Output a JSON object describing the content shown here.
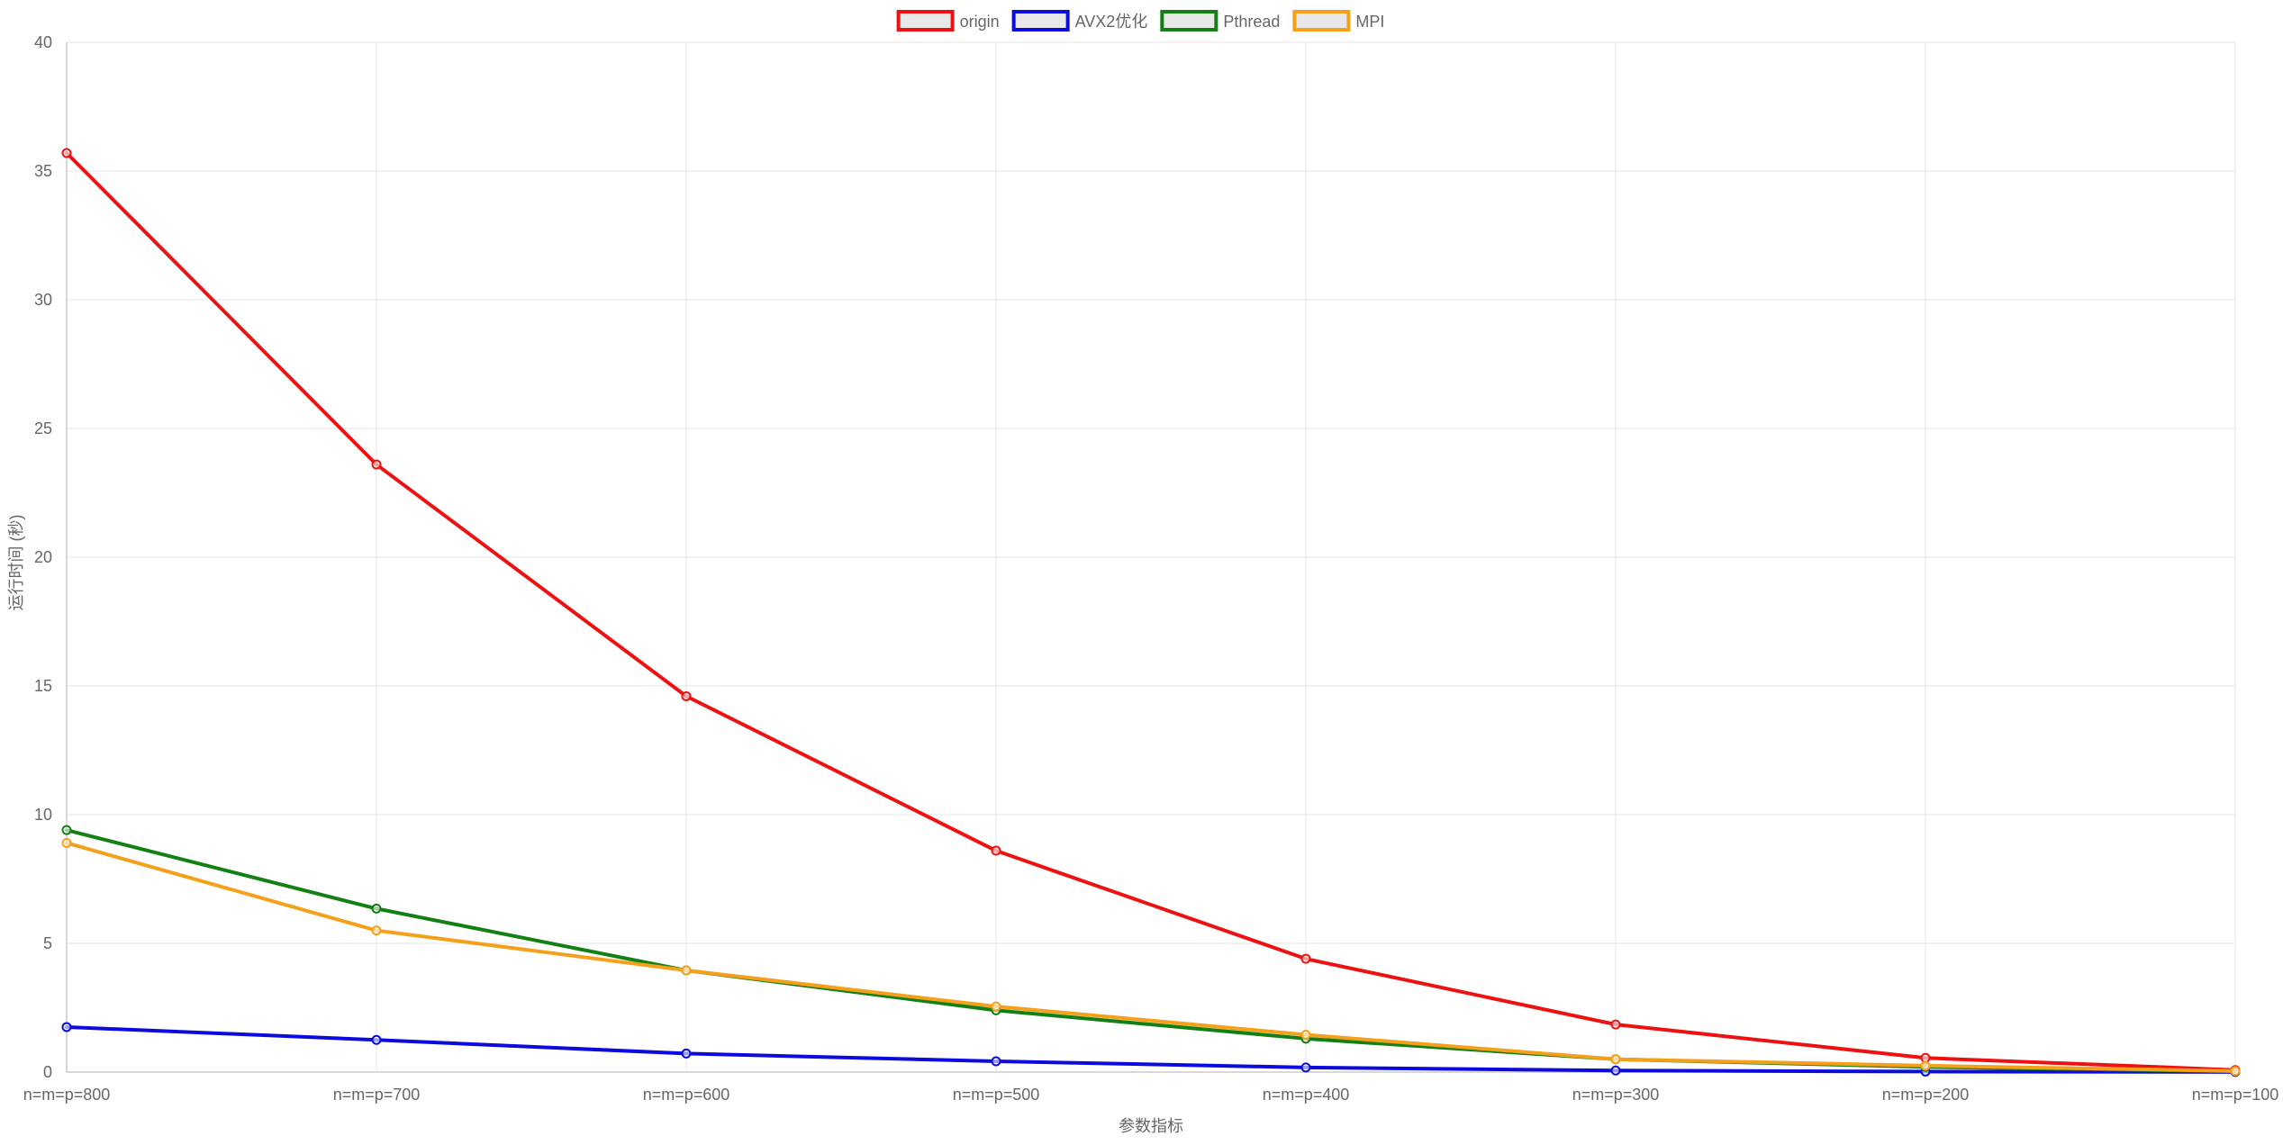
{
  "chart_data": {
    "type": "line",
    "title": "",
    "xlabel": "参数指标",
    "ylabel": "运行时间 (秒)",
    "categories": [
      "n=m=p=800",
      "n=m=p=700",
      "n=m=p=600",
      "n=m=p=500",
      "n=m=p=400",
      "n=m=p=300",
      "n=m=p=200",
      "n=m=p=100"
    ],
    "ylim": [
      0,
      40
    ],
    "yticks": [
      0,
      5,
      10,
      15,
      20,
      25,
      30,
      35,
      40
    ],
    "grid": true,
    "legend_position": "top-center",
    "series": [
      {
        "name": "origin",
        "color": "#ee1111",
        "values": [
          35.7,
          23.6,
          14.6,
          8.6,
          4.4,
          1.85,
          0.55,
          0.08
        ]
      },
      {
        "name": "AVX2优化",
        "color": "#0b0bdd",
        "values": [
          1.75,
          1.25,
          0.72,
          0.42,
          0.18,
          0.06,
          0.02,
          0.005
        ]
      },
      {
        "name": "Pthread",
        "color": "#128012",
        "values": [
          9.4,
          6.35,
          3.95,
          2.4,
          1.3,
          0.5,
          0.2,
          0.03
        ]
      },
      {
        "name": "MPI",
        "color": "#f5a01a",
        "values": [
          8.9,
          5.5,
          3.95,
          2.55,
          1.45,
          0.5,
          0.25,
          0.04
        ]
      }
    ]
  }
}
